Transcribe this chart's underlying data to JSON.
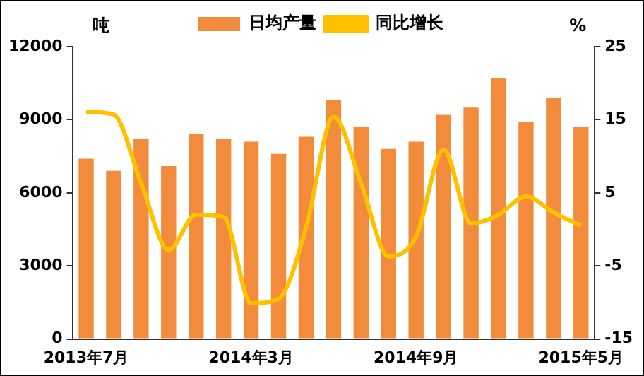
{
  "chart_data": {
    "type": "bar",
    "categories": [
      "2013年7月",
      null,
      null,
      null,
      null,
      null,
      "2014年3月",
      null,
      null,
      null,
      null,
      null,
      "2014年9月",
      null,
      null,
      null,
      null,
      null,
      "2015年5月"
    ],
    "series": [
      {
        "name": "日均产量",
        "color": "#f28c3c",
        "values": [
          7400,
          6900,
          8200,
          7100,
          8400,
          8200,
          8100,
          7600,
          8300,
          9800,
          8700,
          7800,
          8100,
          9200,
          9500,
          10700,
          8900,
          9900,
          8700
        ]
      },
      {
        "name": "同比增长",
        "type": "line",
        "axis": "y2",
        "color": "#ffc000",
        "values": [
          16.1,
          15.7,
          6.3,
          -2.8,
          2.0,
          1.7,
          -10.1,
          -9.5,
          0.2,
          15.4,
          6.3,
          -3.7,
          -1.0,
          10.9,
          0.8,
          2.0,
          4.5,
          2.3,
          0.5
        ]
      }
    ],
    "ylabel": "吨",
    "y2label": "%",
    "ylim": [
      0,
      12000
    ],
    "yticks": [
      0,
      3000,
      6000,
      9000,
      12000
    ],
    "y2lim": [
      -15,
      25
    ],
    "y2ticks": [
      -15,
      -5,
      5,
      15,
      25
    ],
    "grid": false,
    "legend": "top",
    "marker": "none",
    "line_style": "solid"
  }
}
